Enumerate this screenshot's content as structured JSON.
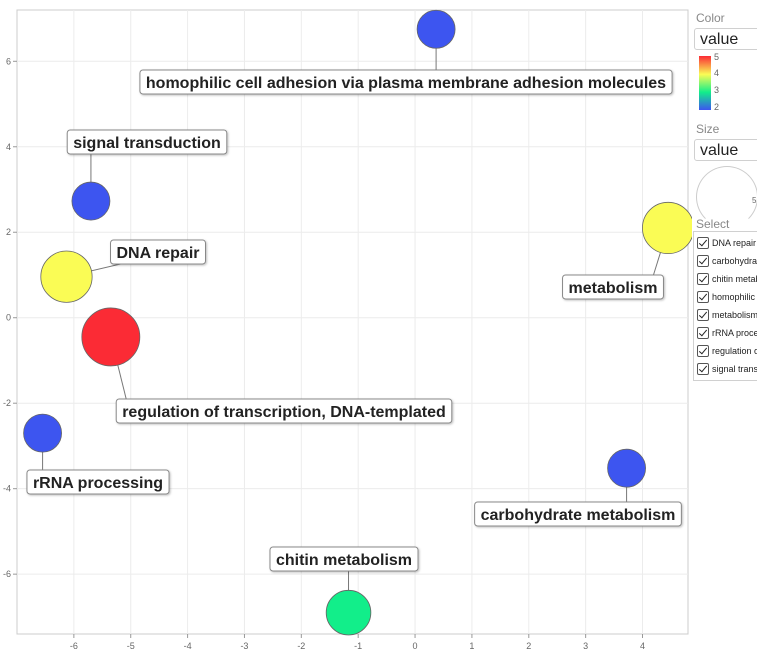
{
  "chart_data": {
    "type": "scatter",
    "xlim": [
      -7.0,
      4.8
    ],
    "ylim": [
      -7.4,
      7.2
    ],
    "x_ticks": [
      -6,
      -5,
      -4,
      -3,
      -2,
      -1,
      0,
      1,
      2,
      3,
      4
    ],
    "y_ticks": [
      -6,
      -4,
      -2,
      0,
      2,
      4,
      6
    ],
    "grid": true,
    "color_scale": {
      "label": "value",
      "min": 2,
      "max": 5,
      "ticks": [
        "5",
        "4",
        "3",
        "2"
      ]
    },
    "points": [
      {
        "label": "homophilic cell adhesion via plasma membrane adhesion molecules",
        "x": 0.37,
        "y": 6.75,
        "value": 2,
        "color": "#3d55f0"
      },
      {
        "label": "signal transduction",
        "x": -5.7,
        "y": 2.73,
        "value": 2,
        "color": "#3d55f0"
      },
      {
        "label": "DNA repair",
        "x": -6.13,
        "y": 0.96,
        "value": 4,
        "color": "#fafc55"
      },
      {
        "label": "metabolism",
        "x": 4.45,
        "y": 2.1,
        "value": 4,
        "color": "#fafc55"
      },
      {
        "label": "regulation of transcription, DNA-templated",
        "x": -5.35,
        "y": -0.45,
        "value": 5,
        "color": "#fb2b35"
      },
      {
        "label": "rRNA processing",
        "x": -6.55,
        "y": -2.7,
        "value": 2,
        "color": "#3d55f0"
      },
      {
        "label": "carbohydrate metabolism",
        "x": 3.72,
        "y": -3.52,
        "value": 2,
        "color": "#3d55f0"
      },
      {
        "label": "chitin metabolism",
        "x": -1.17,
        "y": -6.9,
        "value": 3,
        "color": "#12ee8a"
      }
    ]
  },
  "sidebar": {
    "color_title": "Color",
    "color_value": "value",
    "size_title": "Size",
    "size_value": "value",
    "size_legend_tick": "5",
    "select_title": "Select",
    "select_items": [
      "DNA repair",
      "carbohydrate metabolism",
      "chitin metabolism",
      "homophilic cell adhesion via plasma membrane adhesion molecules",
      "metabolism",
      "rRNA processing",
      "regulation of transcription, DNA-templated",
      "signal transduction"
    ]
  }
}
